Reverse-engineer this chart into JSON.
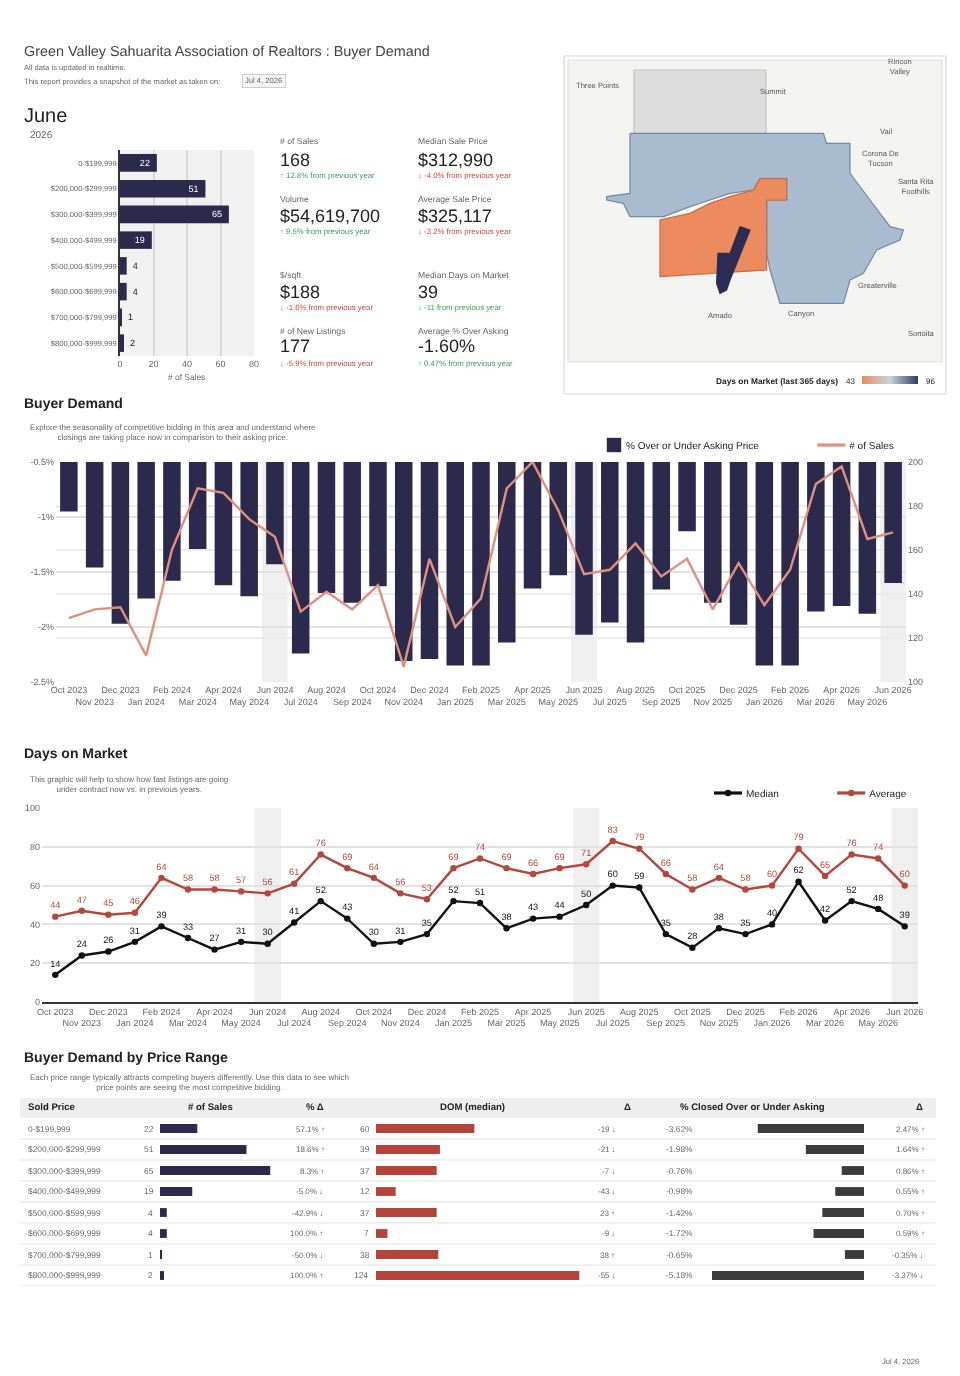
{
  "chart_data": [
    {
      "type": "other",
      "title": "Green Valley Sahuarita Association of Realtors : Buyer Demand",
      "annotations": [
        "All data is updated in realtime.",
        "This report provides a snapshot of the market as taken on:",
        "Jul 4, 2026"
      ]
    },
    {
      "type": "bar",
      "orientation": "horizontal",
      "title": "June",
      "subtitle": "2026",
      "xlabel": "# of Sales",
      "categories": [
        "0-$199,999",
        "$200,000-$299,999",
        "$300,000-$399,999",
        "$400,000-$499,999",
        "$500,000-$599,999",
        "$600,000-$699,999",
        "$700,000-$799,999",
        "$800,000-$999,999"
      ],
      "values": [
        22,
        51,
        65,
        19,
        4,
        4,
        1,
        2
      ],
      "color": "#2b2a4c",
      "xlim": [
        0,
        80
      ],
      "xticks": [
        0,
        20,
        40,
        60,
        80
      ],
      "grid": "x",
      "data_labels": true
    },
    {
      "type": "other",
      "annotations": [
        "# of Sales",
        "168",
        "↑ 12.8% from previous year",
        "Median Sale Price",
        "$312,990",
        "↓ -4.0% from previous year",
        "Volume",
        "$54,619,700",
        "↑ 9.5% from previous year",
        "Average Sale Price",
        "$325,117",
        "↓ -3.2% from previous year",
        "$/sqft",
        "$188",
        "↓ -1.6% from previous year",
        "Median Days on Market",
        "39",
        "↓ -11 from previous year",
        "# of New Listings",
        "177",
        "↓ -5.9% from previous year",
        "Average % Over Asking",
        "-1.60%",
        "↑ 0.47% from previous year"
      ],
      "colors": [
        "#3d9a5c",
        "#d0463c",
        "#3d9a5c",
        "#d0463c",
        "#d0463c",
        "#3d9a5c",
        "#d0463c",
        "#3d9a5c"
      ]
    },
    {
      "type": "other",
      "title": "Days on Market (last 365 days)",
      "annotations": [
        "Three Points",
        "Summit",
        "Rincon Valley",
        "Vail",
        "Corona De Tucson",
        "Santa Rita Foothills",
        "Greaterville",
        "Amado",
        "Canyon",
        "Sonoita",
        "43",
        "96"
      ]
    },
    {
      "type": "bar",
      "title": "Buyer Demand",
      "subtitle": "Explore the seasonality of competitive bidding in this area and understand where closings are taking place now in comparison to their asking price.",
      "categories": [
        "Oct 2023",
        "Nov 2023",
        "Dec 2023",
        "Jan 2024",
        "Feb 2024",
        "Mar 2024",
        "Apr 2024",
        "May 2024",
        "Jun 2024",
        "Jul 2024",
        "Aug 2024",
        "Sep 2024",
        "Oct 2024",
        "Nov 2024",
        "Dec 2024",
        "Jan 2025",
        "Feb 2025",
        "Mar 2025",
        "Apr 2025",
        "May 2025",
        "Jun 2025",
        "Jul 2025",
        "Aug 2025",
        "Sep 2025",
        "Oct 2025",
        "Nov 2025",
        "Dec 2025",
        "Jan 2026",
        "Feb 2026",
        "Mar 2026",
        "Apr 2026",
        "May 2026",
        "Jun 2026"
      ],
      "series": [
        {
          "name": "% Over or Under Asking Price",
          "color": "#2b2a4c",
          "values": [
            -0.95,
            -1.46,
            -1.97,
            -1.74,
            -1.58,
            -1.29,
            -1.62,
            -1.72,
            -1.43,
            -2.24,
            -1.69,
            -1.78,
            -1.63,
            -2.31,
            -2.29,
            -2.35,
            -2.35,
            -2.14,
            -1.65,
            -1.53,
            -2.07,
            -1.96,
            -2.14,
            -1.66,
            -1.13,
            -1.78,
            -1.98,
            -2.35,
            -2.35,
            -1.86,
            -1.81,
            -1.88,
            -1.6
          ]
        },
        {
          "name": "# of Sales",
          "type": "line",
          "axis": "y2",
          "color": "#e0907e",
          "values": [
            129,
            133,
            134,
            112,
            160,
            188,
            186,
            174,
            166,
            132,
            141,
            133,
            144,
            107,
            156,
            125,
            138,
            188,
            200,
            178,
            149,
            151,
            163,
            148,
            156,
            133,
            154,
            135,
            151,
            190,
            198,
            165,
            168
          ]
        }
      ],
      "ylim": [
        -2.5,
        -0.5
      ],
      "yticks": [
        {
          "value": -2.5,
          "label": "-2.5%"
        },
        {
          "value": -2,
          "label": "-2%"
        },
        {
          "value": -1.5,
          "label": "-1.5%"
        },
        {
          "value": -1,
          "label": "-1%"
        },
        {
          "value": -0.5,
          "label": "-0.5%"
        }
      ],
      "y2lim": [
        100,
        200
      ],
      "y2ticks": [
        100,
        120,
        140,
        160,
        180,
        200
      ],
      "grid": "y",
      "legend": "top right",
      "bands": [
        {
          "axis": "x",
          "from": "Jun 2024",
          "to": "Jun 2024",
          "color": "#efefef"
        },
        {
          "axis": "x",
          "from": "Jun 2025",
          "to": "Jun 2025",
          "color": "#efefef"
        },
        {
          "axis": "x",
          "from": "Jun 2026",
          "to": "Jun 2026",
          "color": "#efefef"
        }
      ]
    },
    {
      "type": "line",
      "title": "Days on Market",
      "subtitle": "This graphic will help to show how fast listings are going under contract now vs. in previous years.",
      "categories": [
        "Oct 2023",
        "Nov 2023",
        "Dec 2023",
        "Jan 2024",
        "Feb 2024",
        "Mar 2024",
        "Apr 2024",
        "May 2024",
        "Jun 2024",
        "Jul 2024",
        "Aug 2024",
        "Sep 2024",
        "Oct 2024",
        "Nov 2024",
        "Dec 2024",
        "Jan 2025",
        "Feb 2025",
        "Mar 2025",
        "Apr 2025",
        "May 2025",
        "Jun 2025",
        "Jul 2025",
        "Aug 2025",
        "Sep 2025",
        "Oct 2025",
        "Nov 2025",
        "Dec 2025",
        "Jan 2026",
        "Feb 2026",
        "Mar 2026",
        "Apr 2026",
        "May 2026",
        "Jun 2026"
      ],
      "series": [
        {
          "name": "Median",
          "color": "#111111",
          "values": [
            14,
            24,
            26,
            31,
            39,
            33,
            27,
            31,
            30,
            41,
            52,
            43,
            30,
            31,
            35,
            52,
            51,
            38,
            43,
            44,
            50,
            60,
            59,
            35,
            28,
            38,
            35,
            40,
            62,
            42,
            52,
            48,
            39
          ]
        },
        {
          "name": "Average",
          "color": "#b4473b",
          "values": [
            44,
            47,
            45,
            46,
            64,
            58,
            58,
            57,
            56,
            61,
            76,
            69,
            64,
            56,
            53,
            69,
            74,
            69,
            66,
            69,
            71,
            83,
            79,
            66,
            58,
            64,
            58,
            60,
            79,
            65,
            76,
            74,
            60
          ]
        }
      ],
      "ylim": [
        0,
        100
      ],
      "yticks": [
        0,
        20,
        40,
        60,
        80,
        100
      ],
      "grid": "y",
      "legend": "top right",
      "marker": "circle",
      "data_labels": true,
      "bands": [
        {
          "axis": "x",
          "from": "Jun 2024",
          "to": "Jun 2024",
          "color": "#efefef"
        },
        {
          "axis": "x",
          "from": "Jun 2025",
          "to": "Jun 2025",
          "color": "#efefef"
        },
        {
          "axis": "x",
          "from": "Jun 2026",
          "to": "Jun 2026",
          "color": "#efefef"
        }
      ]
    },
    {
      "type": "bar",
      "orientation": "horizontal",
      "title": "Buyer Demand by Price Range",
      "subtitle": "Each price range typically attracts competing buyers differently. Use this data to see which price points are seeing the most competitive bidding.",
      "ylabel": "Sold Price",
      "xlabel": "# of Sales",
      "categories": [
        "0-$199,999",
        "$200,000-$299,999",
        "$300,000-$399,999",
        "$400,000-$499,999",
        "$500,000-$599,999",
        "$600,000-$699,999",
        "$700,000-$799,999",
        "$800,000-$999,999"
      ],
      "values": [
        22,
        51,
        65,
        19,
        4,
        4,
        1,
        2
      ],
      "color": "#2b2a4c",
      "data_labels": true
    },
    {
      "type": "other",
      "title": "% Δ",
      "annotations": [
        "57.1% ↑",
        "18.6% ↑",
        "8.3% ↑",
        "-5.0% ↓",
        "-42.9% ↓",
        "100.0% ↑",
        "-50.0% ↓",
        "100.0% ↑"
      ]
    },
    {
      "type": "bar",
      "orientation": "horizontal",
      "xlabel": "DOM (median)",
      "categories": [
        null,
        null,
        null,
        null,
        null,
        null,
        null,
        null
      ],
      "values": [
        60,
        39,
        37,
        12,
        37,
        7,
        38,
        124
      ],
      "color": "#b4433a",
      "data_labels": true
    },
    {
      "type": "other",
      "title": "Δ",
      "annotations": [
        "-19 ↓",
        "-21 ↓",
        "-7 ↓",
        "-43 ↓",
        "23 ↑",
        "-9 ↓",
        "38 ↑",
        "-55 ↓"
      ]
    },
    {
      "type": "bar",
      "orientation": "horizontal",
      "xlabel": "% Closed Over or Under Asking",
      "categories": [
        null,
        null,
        null,
        null,
        null,
        null,
        null,
        null
      ],
      "values": [
        -3.62,
        -1.98,
        -0.76,
        -0.98,
        -1.42,
        -1.72,
        -0.65,
        -5.18
      ],
      "value_labels": [
        "-3.62%",
        "-1.98%",
        "-0.76%",
        "-0.98%",
        "-1.42%",
        "-1.72%",
        "-0.65%",
        "-5.18%"
      ],
      "color": "#3b3b3b"
    },
    {
      "type": "other",
      "title": "Δ",
      "annotations": [
        "2.47% ↑",
        "1.64% ↑",
        "0.86% ↑",
        "0.55% ↑",
        "0.70% ↑",
        "0.59% ↑",
        "-0.35% ↓",
        "-3.37% ↓"
      ]
    },
    {
      "type": "other",
      "annotations": [
        "Jul 4, 2026"
      ]
    }
  ]
}
